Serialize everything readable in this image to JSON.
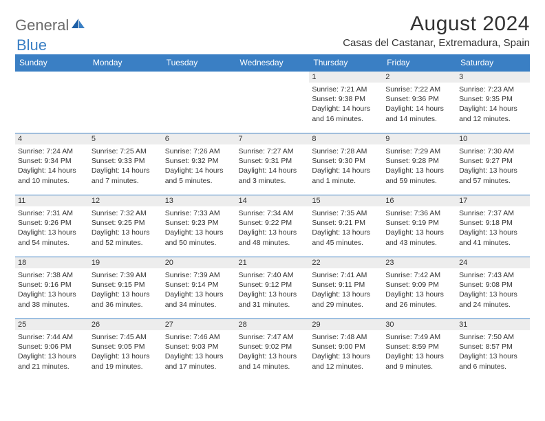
{
  "logo": {
    "word1": "General",
    "word2": "Blue"
  },
  "title": "August 2024",
  "subtitle": "Casas del Castanar, Extremadura, Spain",
  "colors": {
    "header_bg": "#3a7fc4",
    "header_fg": "#ffffff",
    "daynum_bg": "#ededed",
    "border": "#3a7fc4",
    "text": "#333333",
    "logo_gray": "#6b6b6b",
    "logo_blue": "#3a7fc4",
    "page_bg": "#ffffff"
  },
  "weekdays": [
    "Sunday",
    "Monday",
    "Tuesday",
    "Wednesday",
    "Thursday",
    "Friday",
    "Saturday"
  ],
  "weeks": [
    [
      null,
      null,
      null,
      null,
      {
        "n": "1",
        "sr": "7:21 AM",
        "ss": "9:38 PM",
        "dl": "14 hours and 16 minutes."
      },
      {
        "n": "2",
        "sr": "7:22 AM",
        "ss": "9:36 PM",
        "dl": "14 hours and 14 minutes."
      },
      {
        "n": "3",
        "sr": "7:23 AM",
        "ss": "9:35 PM",
        "dl": "14 hours and 12 minutes."
      }
    ],
    [
      {
        "n": "4",
        "sr": "7:24 AM",
        "ss": "9:34 PM",
        "dl": "14 hours and 10 minutes."
      },
      {
        "n": "5",
        "sr": "7:25 AM",
        "ss": "9:33 PM",
        "dl": "14 hours and 7 minutes."
      },
      {
        "n": "6",
        "sr": "7:26 AM",
        "ss": "9:32 PM",
        "dl": "14 hours and 5 minutes."
      },
      {
        "n": "7",
        "sr": "7:27 AM",
        "ss": "9:31 PM",
        "dl": "14 hours and 3 minutes."
      },
      {
        "n": "8",
        "sr": "7:28 AM",
        "ss": "9:30 PM",
        "dl": "14 hours and 1 minute."
      },
      {
        "n": "9",
        "sr": "7:29 AM",
        "ss": "9:28 PM",
        "dl": "13 hours and 59 minutes."
      },
      {
        "n": "10",
        "sr": "7:30 AM",
        "ss": "9:27 PM",
        "dl": "13 hours and 57 minutes."
      }
    ],
    [
      {
        "n": "11",
        "sr": "7:31 AM",
        "ss": "9:26 PM",
        "dl": "13 hours and 54 minutes."
      },
      {
        "n": "12",
        "sr": "7:32 AM",
        "ss": "9:25 PM",
        "dl": "13 hours and 52 minutes."
      },
      {
        "n": "13",
        "sr": "7:33 AM",
        "ss": "9:23 PM",
        "dl": "13 hours and 50 minutes."
      },
      {
        "n": "14",
        "sr": "7:34 AM",
        "ss": "9:22 PM",
        "dl": "13 hours and 48 minutes."
      },
      {
        "n": "15",
        "sr": "7:35 AM",
        "ss": "9:21 PM",
        "dl": "13 hours and 45 minutes."
      },
      {
        "n": "16",
        "sr": "7:36 AM",
        "ss": "9:19 PM",
        "dl": "13 hours and 43 minutes."
      },
      {
        "n": "17",
        "sr": "7:37 AM",
        "ss": "9:18 PM",
        "dl": "13 hours and 41 minutes."
      }
    ],
    [
      {
        "n": "18",
        "sr": "7:38 AM",
        "ss": "9:16 PM",
        "dl": "13 hours and 38 minutes."
      },
      {
        "n": "19",
        "sr": "7:39 AM",
        "ss": "9:15 PM",
        "dl": "13 hours and 36 minutes."
      },
      {
        "n": "20",
        "sr": "7:39 AM",
        "ss": "9:14 PM",
        "dl": "13 hours and 34 minutes."
      },
      {
        "n": "21",
        "sr": "7:40 AM",
        "ss": "9:12 PM",
        "dl": "13 hours and 31 minutes."
      },
      {
        "n": "22",
        "sr": "7:41 AM",
        "ss": "9:11 PM",
        "dl": "13 hours and 29 minutes."
      },
      {
        "n": "23",
        "sr": "7:42 AM",
        "ss": "9:09 PM",
        "dl": "13 hours and 26 minutes."
      },
      {
        "n": "24",
        "sr": "7:43 AM",
        "ss": "9:08 PM",
        "dl": "13 hours and 24 minutes."
      }
    ],
    [
      {
        "n": "25",
        "sr": "7:44 AM",
        "ss": "9:06 PM",
        "dl": "13 hours and 21 minutes."
      },
      {
        "n": "26",
        "sr": "7:45 AM",
        "ss": "9:05 PM",
        "dl": "13 hours and 19 minutes."
      },
      {
        "n": "27",
        "sr": "7:46 AM",
        "ss": "9:03 PM",
        "dl": "13 hours and 17 minutes."
      },
      {
        "n": "28",
        "sr": "7:47 AM",
        "ss": "9:02 PM",
        "dl": "13 hours and 14 minutes."
      },
      {
        "n": "29",
        "sr": "7:48 AM",
        "ss": "9:00 PM",
        "dl": "13 hours and 12 minutes."
      },
      {
        "n": "30",
        "sr": "7:49 AM",
        "ss": "8:59 PM",
        "dl": "13 hours and 9 minutes."
      },
      {
        "n": "31",
        "sr": "7:50 AM",
        "ss": "8:57 PM",
        "dl": "13 hours and 6 minutes."
      }
    ]
  ],
  "labels": {
    "sunrise": "Sunrise: ",
    "sunset": "Sunset: ",
    "daylight": "Daylight: "
  }
}
